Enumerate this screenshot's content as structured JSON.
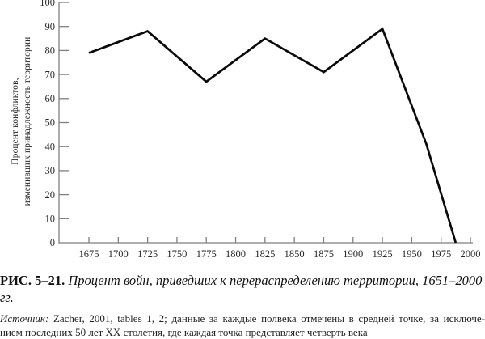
{
  "chart_data": {
    "type": "line",
    "title": "",
    "xlabel": "",
    "ylabel": "Процент конфликтов, изменивших принадлежность территории",
    "ylabel_line1": "Процент конфликтов,",
    "ylabel_line2": "изменивших принадлежность территории",
    "x": [
      1675,
      1725,
      1775,
      1825,
      1875,
      1925,
      1962.5,
      1987.5
    ],
    "values": [
      79,
      88,
      67,
      85,
      71,
      89,
      41,
      0
    ],
    "x_ticks": [
      1675,
      1700,
      1725,
      1750,
      1775,
      1800,
      1825,
      1850,
      1875,
      1900,
      1925,
      1950,
      1975,
      2000
    ],
    "y_ticks": [
      0,
      10,
      20,
      30,
      40,
      50,
      60,
      70,
      80,
      90,
      100
    ],
    "ylim": [
      0,
      100
    ],
    "xlim": [
      1675,
      2000
    ],
    "grid": false,
    "legend": false,
    "line_color": "#0a0a0a",
    "axis_color": "#7f7f7f",
    "tick_label_color": "#2b2b2b"
  },
  "caption": {
    "label": "РИС. 5–21.",
    "title_part1": "Процент войн, приведших к перераспределению территории,",
    "title_part2": "1651–2000 гг."
  },
  "source": {
    "prefix": "Источник:",
    "line1_rest": "Zacher, 2001, tables 1, 2; данные за каждые полвека отмечены в средней точке, за исключе-",
    "line2": "нием последних 50 лет XX столетия, где каждая точка представляет четверть века"
  }
}
